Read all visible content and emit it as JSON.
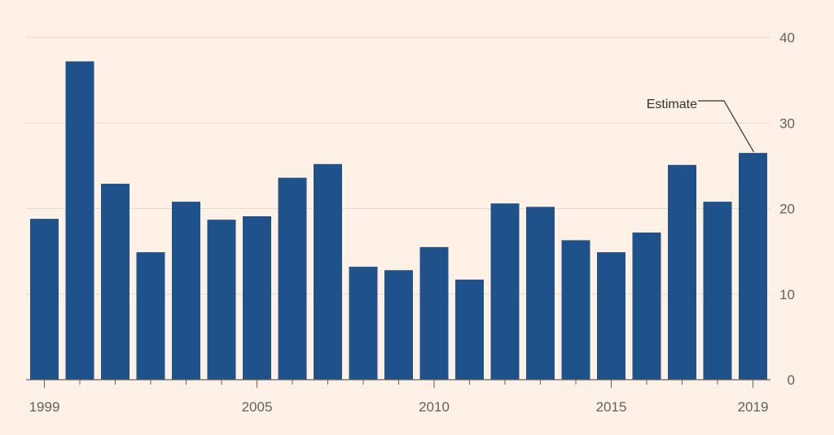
{
  "chart_data": {
    "type": "bar",
    "title": "",
    "xlabel": "",
    "ylabel": "",
    "categories": [
      "1999",
      "2000",
      "2001",
      "2002",
      "2003",
      "2004",
      "2005",
      "2006",
      "2007",
      "2008",
      "2009",
      "2010",
      "2011",
      "2012",
      "2013",
      "2014",
      "2015",
      "2016",
      "2017",
      "2018",
      "2019"
    ],
    "values": [
      18.8,
      37.2,
      22.9,
      14.9,
      20.8,
      18.7,
      19.1,
      23.6,
      25.2,
      13.2,
      12.8,
      15.5,
      11.7,
      20.6,
      20.2,
      16.3,
      14.9,
      17.2,
      25.1,
      20.8,
      26.5
    ],
    "x_tick_labels": [
      "1999",
      "2005",
      "2010",
      "2015",
      "2019"
    ],
    "y_ticks": [
      0,
      10,
      20,
      30,
      40
    ],
    "ylim": [
      0,
      40
    ],
    "grid": true,
    "bar_color": "#1f528a",
    "annotation": {
      "text": "Estimate",
      "target": "2019"
    }
  }
}
